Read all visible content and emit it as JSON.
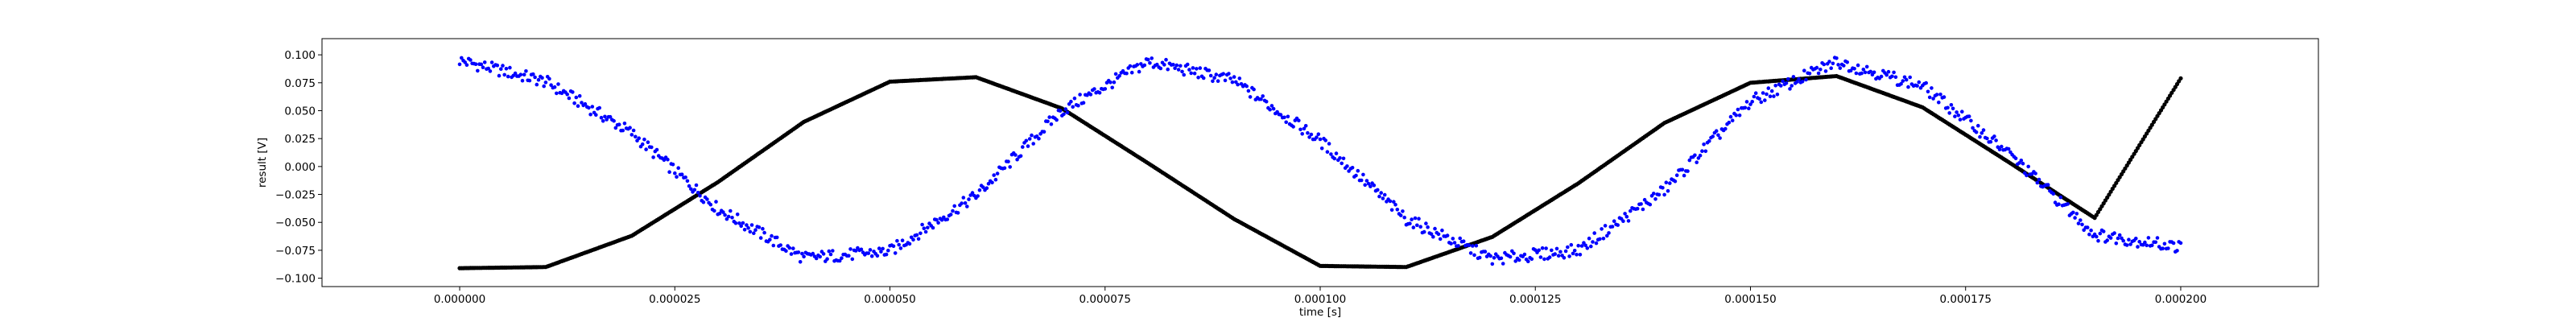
{
  "chart_data": {
    "type": "scatter",
    "title": "",
    "xlabel": "time [s]",
    "ylabel": "result [V]",
    "xlim": [
      -1.6e-05,
      0.000216
    ],
    "ylim": [
      -0.1075,
      0.1145
    ],
    "x_ticks": [
      0,
      2.5e-05,
      5e-05,
      7.5e-05,
      0.0001,
      0.000125,
      0.00015,
      0.000175,
      0.0002
    ],
    "x_tick_labels": [
      "0.000000",
      "0.000025",
      "0.000050",
      "0.000075",
      "0.000100",
      "0.000125",
      "0.000150",
      "0.000175",
      "0.000200"
    ],
    "y_ticks": [
      -0.1,
      -0.075,
      -0.05,
      -0.025,
      0,
      0.025,
      0.05,
      0.075,
      0.1
    ],
    "y_tick_labels": [
      "−0.100",
      "−0.075",
      "−0.050",
      "−0.025",
      "0.000",
      "0.025",
      "0.050",
      "0.075",
      "0.100"
    ],
    "grid": false,
    "legend": "none",
    "series": [
      {
        "color": "#000000",
        "marker": "dot",
        "x": [
          0,
          1e-05,
          2e-05,
          3e-05,
          4e-05,
          5e-05,
          6e-05,
          7e-05,
          8e-05,
          9e-05,
          0.0001,
          0.00011,
          0.00012,
          0.00013,
          0.00014,
          0.00015,
          0.00016,
          0.00017,
          0.00018,
          0.00019,
          0.0002
        ],
        "y": [
          -0.091,
          -0.09,
          -0.062,
          -0.014,
          0.04,
          0.076,
          0.08,
          0.052,
          0.003,
          -0.047,
          -0.089,
          -0.09,
          -0.063,
          -0.015,
          0.039,
          0.075,
          0.081,
          0.053,
          0.004,
          -0.046,
          0.079
        ]
      },
      {
        "color": "#0000ff",
        "marker": "dot",
        "x": [
          0,
          1e-05,
          2e-05,
          3e-05,
          4e-05,
          5e-05,
          6e-05,
          7e-05,
          8e-05,
          9e-05,
          0.0001,
          0.00011,
          0.00012,
          0.00013,
          0.00014,
          0.00015,
          0.00016,
          0.00017,
          0.00018,
          0.00019,
          0.0002
        ],
        "y": [
          0.095,
          0.076,
          0.03,
          -0.038,
          -0.082,
          -0.076,
          -0.026,
          0.05,
          0.094,
          0.077,
          0.023,
          -0.047,
          -0.083,
          -0.075,
          -0.021,
          0.058,
          0.094,
          0.072,
          0.012,
          -0.061,
          -0.072
        ]
      }
    ]
  }
}
